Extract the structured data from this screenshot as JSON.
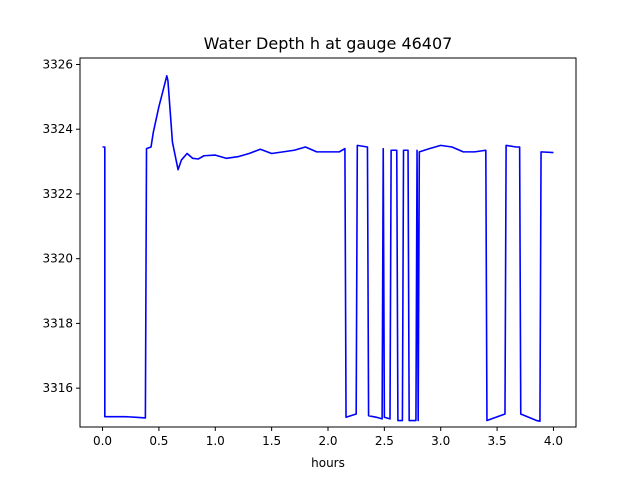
{
  "chart_data": {
    "type": "line",
    "title": "Water Depth h at gauge 46407",
    "xlabel": "hours",
    "ylabel": "",
    "xlim": [
      -0.2,
      4.2
    ],
    "ylim": [
      3314.8,
      3326.2
    ],
    "xticks": [
      0.0,
      0.5,
      1.0,
      1.5,
      2.0,
      2.5,
      3.0,
      3.5,
      4.0
    ],
    "xtick_labels": [
      "0.0",
      "0.5",
      "1.0",
      "1.5",
      "2.0",
      "2.5",
      "3.0",
      "3.5",
      "4.0"
    ],
    "yticks": [
      3316,
      3318,
      3320,
      3322,
      3324,
      3326
    ],
    "ytick_labels": [
      "3316",
      "3318",
      "3320",
      "3322",
      "3324",
      "3326"
    ],
    "grid": false,
    "legend": "none",
    "series": [
      {
        "color": "#0000ff",
        "x": [
          0.0,
          0.02,
          0.02,
          0.1,
          0.2,
          0.3,
          0.38,
          0.39,
          0.43,
          0.45,
          0.5,
          0.53,
          0.57,
          0.58,
          0.62,
          0.67,
          0.7,
          0.75,
          0.8,
          0.85,
          0.9,
          1.0,
          1.1,
          1.2,
          1.3,
          1.4,
          1.5,
          1.6,
          1.7,
          1.8,
          1.9,
          2.0,
          2.1,
          2.15,
          2.16,
          2.25,
          2.26,
          2.35,
          2.36,
          2.43,
          2.48,
          2.49,
          2.5,
          2.55,
          2.56,
          2.61,
          2.62,
          2.66,
          2.67,
          2.71,
          2.72,
          2.78,
          2.79,
          2.8,
          2.81,
          2.9,
          3.0,
          3.1,
          3.2,
          3.3,
          3.4,
          3.41,
          3.57,
          3.58,
          3.67,
          3.7,
          3.71,
          3.85,
          3.88,
          3.89,
          4.0
        ],
        "values": [
          3323.45,
          3323.45,
          3315.12,
          3315.12,
          3315.12,
          3315.1,
          3315.08,
          3323.4,
          3323.45,
          3323.9,
          3324.7,
          3325.1,
          3325.65,
          3325.5,
          3323.6,
          3322.75,
          3323.05,
          3323.25,
          3323.1,
          3323.08,
          3323.18,
          3323.2,
          3323.1,
          3323.15,
          3323.25,
          3323.38,
          3323.25,
          3323.3,
          3323.35,
          3323.45,
          3323.3,
          3323.3,
          3323.3,
          3323.4,
          3315.1,
          3315.2,
          3323.5,
          3323.45,
          3315.15,
          3315.1,
          3315.05,
          3323.4,
          3315.1,
          3315.05,
          3323.35,
          3323.35,
          3315.0,
          3315.0,
          3323.35,
          3323.35,
          3315.0,
          3315.0,
          3323.35,
          3315.0,
          3323.3,
          3323.4,
          3323.5,
          3323.45,
          3323.3,
          3323.3,
          3323.35,
          3315.0,
          3315.2,
          3323.5,
          3323.45,
          3323.45,
          3315.2,
          3315.0,
          3314.98,
          3323.3,
          3323.28
        ]
      }
    ]
  }
}
